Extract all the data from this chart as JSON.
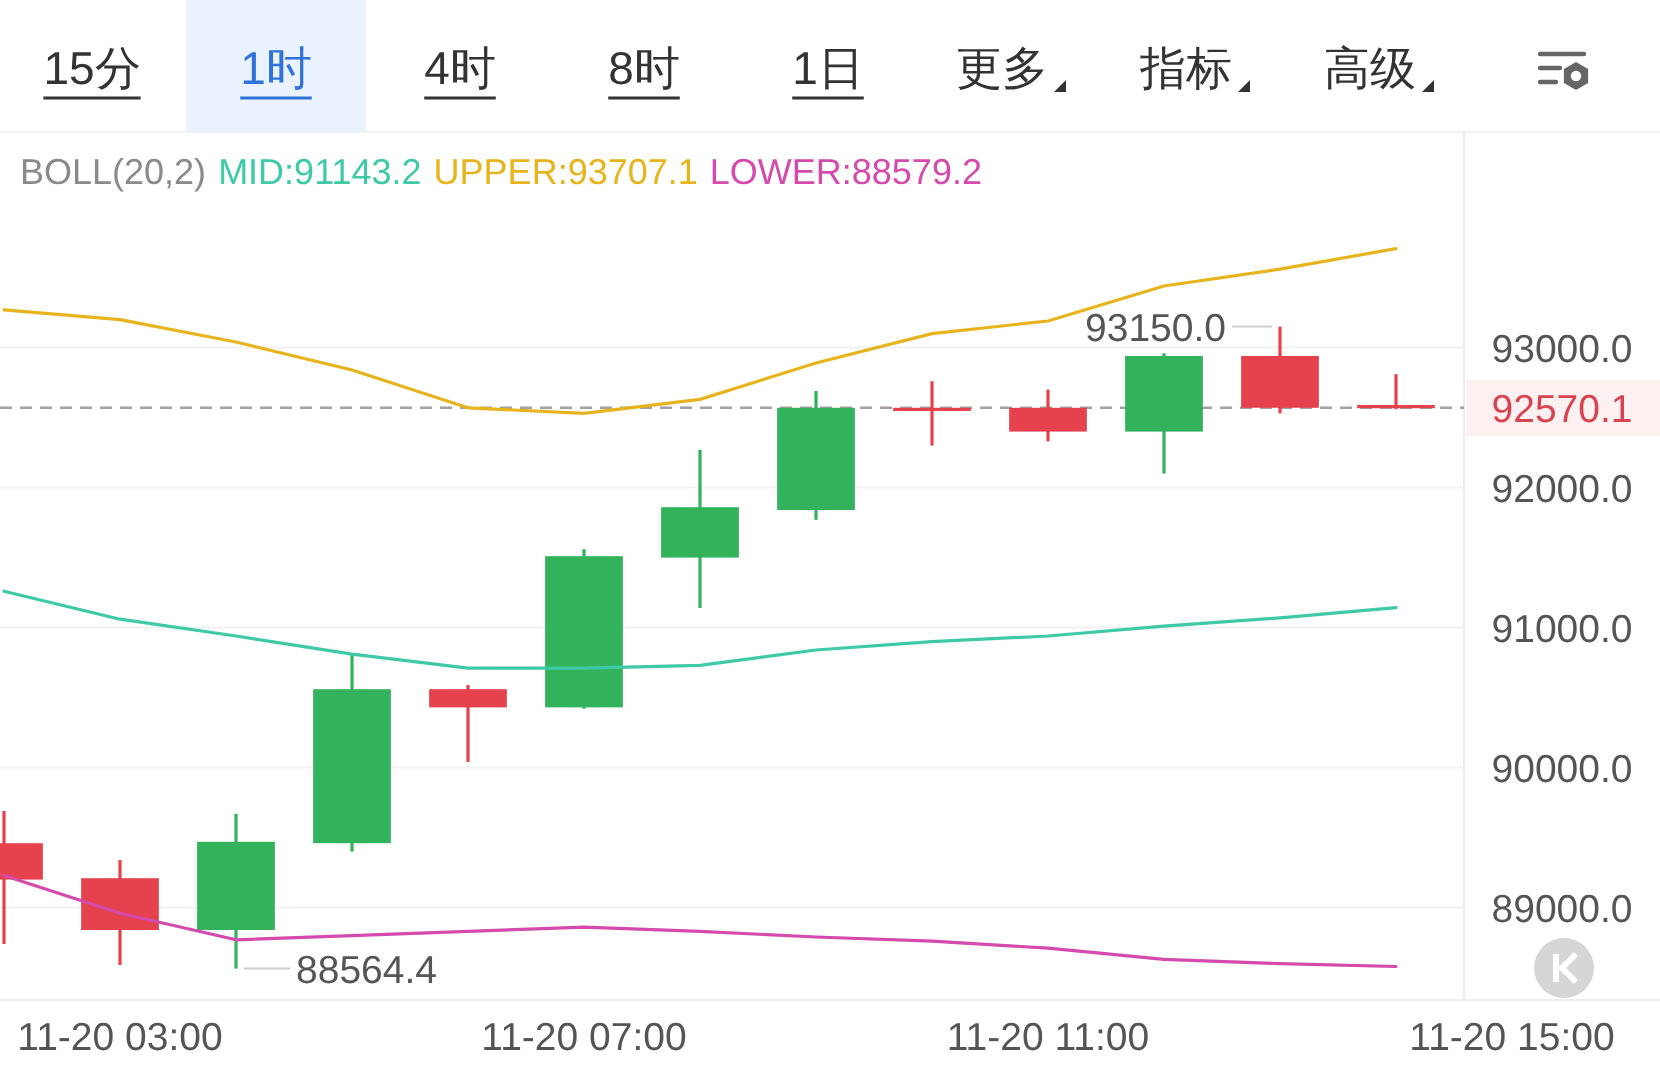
{
  "chart_data": {
    "type": "candlestick",
    "legend_title": "BOLL(20,2)",
    "categories": [
      null,
      "11-20 03:00",
      null,
      null,
      null,
      "11-20 07:00",
      null,
      null,
      null,
      "11-20 11:00",
      null,
      null,
      null,
      "11-20 15:00"
    ],
    "ohlc": [
      [
        89460,
        89690,
        88740,
        89200
      ],
      [
        89210,
        89340,
        88590,
        88840
      ],
      [
        88840,
        89670,
        88564.4,
        89470
      ],
      [
        89460,
        90810,
        89400,
        90560
      ],
      [
        90560,
        90590,
        90040,
        90430
      ],
      [
        90430,
        91560,
        90420,
        91510
      ],
      [
        91500,
        92270,
        91140,
        91860
      ],
      [
        91840,
        92690,
        91770,
        92570
      ],
      [
        92570,
        92760,
        92300,
        92550
      ],
      [
        92570,
        92700,
        92330,
        92400
      ],
      [
        92400,
        92960,
        92100,
        92940
      ],
      [
        92940,
        93150,
        92530,
        92570
      ],
      [
        92590,
        92810,
        92560,
        92570.1
      ],
      null
    ],
    "colors": [
      "#e5424d",
      "#e5424d",
      "#32b25b",
      "#32b25b",
      "#e5424d",
      "#32b25b",
      "#32b25b",
      "#32b25b",
      "#e5424d",
      "#e5424d",
      "#32b25b",
      "#e5424d",
      "#e5424d",
      null
    ],
    "series": [
      {
        "name": "MID:91143.2",
        "type": "line",
        "color": "#3ec9a7",
        "values": [
          91260,
          91060,
          90940,
          90810,
          90710,
          90710,
          90730,
          90840,
          90900,
          90940,
          91010,
          91070,
          91143.2,
          null
        ]
      },
      {
        "name": "UPPER:93707.1",
        "type": "line",
        "color": "#e8b41e",
        "values": [
          93270,
          93200,
          93040,
          92840,
          92570,
          92530,
          92630,
          92890,
          93100,
          93190,
          93440,
          93560,
          93707.1,
          null
        ]
      },
      {
        "name": "LOWER:88579.2",
        "type": "line",
        "color": "#d44aad",
        "values": [
          89230,
          88960,
          88770,
          88800,
          88830,
          88860,
          88830,
          88790,
          88760,
          88710,
          88630,
          88600,
          88579.2,
          null
        ]
      }
    ],
    "ylim": [
      88340,
      94540
    ],
    "yticks": [
      {
        "value": 89000,
        "label": "89000.0"
      },
      {
        "value": 90000,
        "label": "90000.0"
      },
      {
        "value": 91000,
        "label": "91000.0"
      },
      {
        "value": 92000,
        "label": "92000.0"
      },
      {
        "value": 93000,
        "label": "93000.0"
      }
    ],
    "grid": "y",
    "legend": "top left",
    "ref_lines": [
      {
        "axis": "y",
        "value": 92570.1,
        "color": "#a0a0a0",
        "line_style": "dashed"
      }
    ],
    "annotations": [
      "15分",
      "1时",
      "4时",
      "8时",
      "1日",
      "更多",
      "指标",
      "高级",
      "88564.4",
      "93150.0",
      "92570.1"
    ]
  }
}
